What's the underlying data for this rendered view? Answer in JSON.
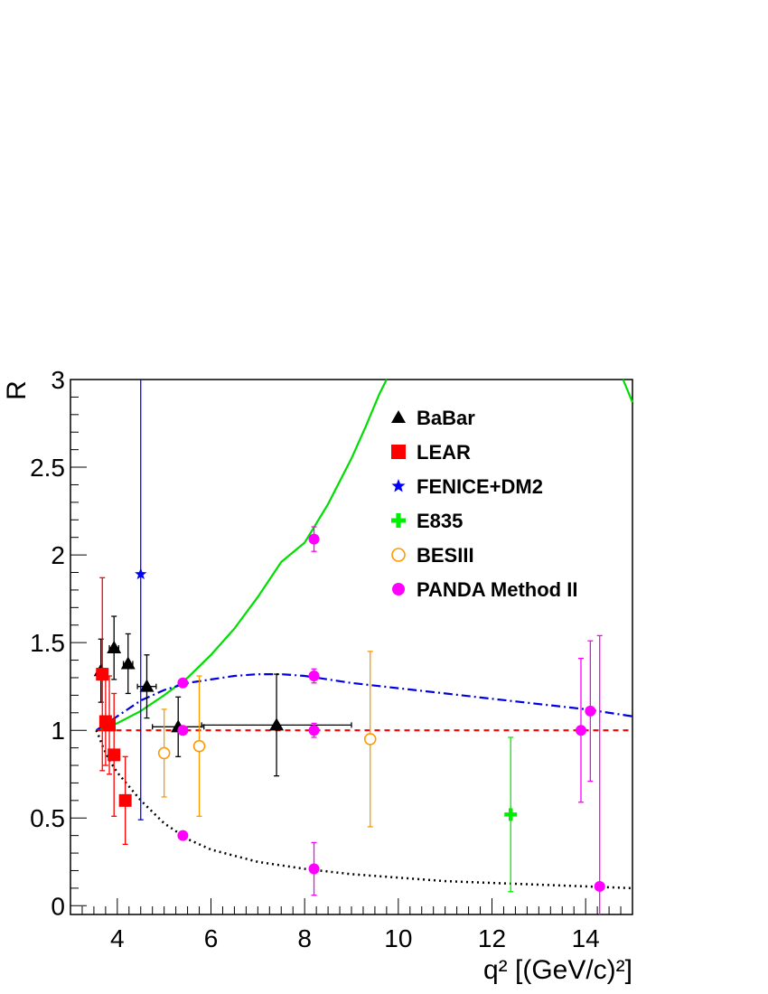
{
  "chart_data": {
    "type": "scatter",
    "xlabel": "q² [(GeV/c)²]",
    "ylabel": "R",
    "xlim": [
      3.0,
      15.0
    ],
    "ylim": [
      -0.05,
      3.0
    ],
    "x_ticks": [
      "4",
      "6",
      "8",
      "10",
      "12",
      "14"
    ],
    "y_ticks": [
      "0",
      "0.5",
      "1",
      "1.5",
      "2",
      "2.5",
      "3"
    ],
    "colors": {
      "babar": "#000000",
      "lear": "#ff0000",
      "fenice": "#0000ff",
      "e835": "#00ee00",
      "besiii": "#ff9900",
      "panda": "#ff00ff",
      "green_curve": "#00dd00",
      "blue_curve": "#0000dd",
      "red_line": "#ff0000",
      "black_curve": "#000000"
    },
    "legend_position": "top-right",
    "series": [
      {
        "name": "BaBar",
        "key": "babar",
        "marker": "triangle",
        "points": [
          {
            "x": 3.65,
            "y": 1.34,
            "ey": 0.18,
            "ex": 0.08
          },
          {
            "x": 3.93,
            "y": 1.47,
            "ey": 0.18,
            "ex": 0.1
          },
          {
            "x": 4.23,
            "y": 1.38,
            "ey": 0.17,
            "ex": 0.1
          },
          {
            "x": 4.63,
            "y": 1.25,
            "ey": 0.18,
            "ex": 0.2
          },
          {
            "x": 5.3,
            "y": 1.02,
            "ey": 0.17,
            "ex": 0.55
          },
          {
            "x": 7.4,
            "y": 1.03,
            "ey": 0.29,
            "ex": 1.6
          }
        ]
      },
      {
        "name": "LEAR",
        "key": "lear",
        "marker": "square",
        "points": [
          {
            "x": 3.68,
            "y": 1.32,
            "ey": 0.55
          },
          {
            "x": 3.75,
            "y": 1.05,
            "ey": 0.25
          },
          {
            "x": 3.83,
            "y": 1.03,
            "ey": 0.28
          },
          {
            "x": 3.93,
            "y": 0.86,
            "ey": 0.35
          },
          {
            "x": 4.17,
            "y": 0.6,
            "ey": 0.25
          }
        ]
      },
      {
        "name": "FENICE+DM2",
        "key": "fenice",
        "marker": "star",
        "points": [
          {
            "x": 4.5,
            "y": 1.89,
            "ey": 1.4
          }
        ]
      },
      {
        "name": "E835",
        "key": "e835",
        "marker": "cross",
        "points": [
          {
            "x": 12.4,
            "y": 0.52,
            "ey": 0.44
          }
        ]
      },
      {
        "name": "BESIII",
        "key": "besiii",
        "marker": "open-circle",
        "points": [
          {
            "x": 5.0,
            "y": 0.87,
            "ey": 0.25
          },
          {
            "x": 5.75,
            "y": 0.91,
            "ey": 0.4
          },
          {
            "x": 9.4,
            "y": 0.95,
            "ey": 0.5
          }
        ]
      },
      {
        "name": "PANDA Method II",
        "key": "panda",
        "marker": "circle",
        "points": [
          {
            "x": 5.4,
            "y": 1.27,
            "ey": 0.0
          },
          {
            "x": 5.4,
            "y": 1.0,
            "ey": 0.0
          },
          {
            "x": 5.4,
            "y": 0.4,
            "ey": 0.0
          },
          {
            "x": 8.2,
            "y": 2.09,
            "ey": 0.07
          },
          {
            "x": 8.2,
            "y": 1.31,
            "ey": 0.04
          },
          {
            "x": 8.2,
            "y": 1.0,
            "ey": 0.04
          },
          {
            "x": 8.2,
            "y": 0.21,
            "ey": 0.15
          },
          {
            "x": 13.9,
            "y": 1.0,
            "ey": 0.41
          },
          {
            "x": 14.1,
            "y": 1.11,
            "ey": 0.4
          },
          {
            "x": 14.3,
            "y": 0.11,
            "ey": 1.43
          }
        ]
      }
    ],
    "curves": [
      {
        "key": "green_curve",
        "style": "solid",
        "points": [
          [
            3.55,
            1.0
          ],
          [
            4.0,
            1.04
          ],
          [
            4.5,
            1.11
          ],
          [
            5.0,
            1.2
          ],
          [
            5.5,
            1.3
          ],
          [
            6.0,
            1.43
          ],
          [
            6.5,
            1.58
          ],
          [
            7.0,
            1.76
          ],
          [
            7.5,
            1.96
          ],
          [
            8.0,
            2.07
          ],
          [
            8.5,
            2.29
          ],
          [
            9.0,
            2.55
          ],
          [
            9.3,
            2.73
          ],
          [
            9.6,
            2.92
          ],
          [
            9.75,
            3.0
          ]
        ]
      },
      {
        "key": "green_curve",
        "style": "solid",
        "points": [
          [
            14.8,
            3.0
          ],
          [
            15.0,
            2.87
          ]
        ]
      },
      {
        "key": "blue_curve",
        "style": "dashdot",
        "points": [
          [
            3.55,
            1.0
          ],
          [
            4.0,
            1.08
          ],
          [
            4.5,
            1.17
          ],
          [
            5.0,
            1.23
          ],
          [
            5.5,
            1.27
          ],
          [
            6.0,
            1.29
          ],
          [
            6.5,
            1.31
          ],
          [
            7.0,
            1.32
          ],
          [
            7.5,
            1.32
          ],
          [
            8.0,
            1.31
          ],
          [
            8.5,
            1.29
          ],
          [
            9.0,
            1.27
          ],
          [
            10.0,
            1.24
          ],
          [
            11.0,
            1.21
          ],
          [
            12.0,
            1.18
          ],
          [
            13.0,
            1.15
          ],
          [
            14.0,
            1.12
          ],
          [
            15.0,
            1.08
          ]
        ]
      },
      {
        "key": "red_line",
        "style": "dashed",
        "points": [
          [
            3.55,
            1.0
          ],
          [
            15.0,
            1.0
          ]
        ]
      },
      {
        "key": "black_curve",
        "style": "dotted",
        "points": [
          [
            3.55,
            1.0
          ],
          [
            3.6,
            0.97
          ],
          [
            3.7,
            0.9
          ],
          [
            3.85,
            0.82
          ],
          [
            4.0,
            0.76
          ],
          [
            4.5,
            0.6
          ],
          [
            5.0,
            0.47
          ],
          [
            5.5,
            0.38
          ],
          [
            6.0,
            0.32
          ],
          [
            7.0,
            0.25
          ],
          [
            8.0,
            0.21
          ],
          [
            9.0,
            0.18
          ],
          [
            10.0,
            0.16
          ],
          [
            11.0,
            0.14
          ],
          [
            12.0,
            0.13
          ],
          [
            13.0,
            0.12
          ],
          [
            14.0,
            0.11
          ],
          [
            15.0,
            0.1
          ]
        ]
      }
    ]
  }
}
